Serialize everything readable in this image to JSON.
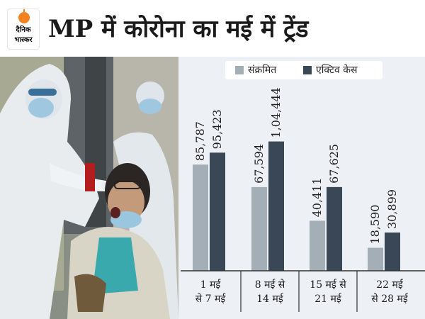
{
  "logo": {
    "line1": "दैनिक",
    "line2": "भास्कर"
  },
  "title": "MP में कोरोना का मई में ट्रेंड",
  "colors": {
    "infected": "#a4aeb7",
    "active": "#3a4756",
    "orange": "#f58220",
    "panel": "#edf0f4"
  },
  "legend": {
    "infected": "संक्रमित",
    "active": "एक्टिव केस"
  },
  "chart_data": {
    "type": "bar",
    "categories": [
      [
        "1 मई",
        "से 7 मई"
      ],
      [
        "8 मई से",
        "14 मई"
      ],
      [
        "15 मई से",
        "21 मई"
      ],
      [
        "22 मई",
        "से 28 मई"
      ]
    ],
    "series": [
      {
        "name": "संक्रमित",
        "values": [
          85787,
          67594,
          40411,
          18590
        ],
        "labels": [
          "85,787",
          "67,594",
          "40,411",
          "18,590"
        ]
      },
      {
        "name": "एक्टिव केस",
        "values": [
          95423,
          104444,
          67625,
          30899
        ],
        "labels": [
          "95,423",
          "1,04,444",
          "67,625",
          "30,899"
        ]
      }
    ],
    "ylim": [
      0,
      150000
    ],
    "legend_position": "top"
  }
}
